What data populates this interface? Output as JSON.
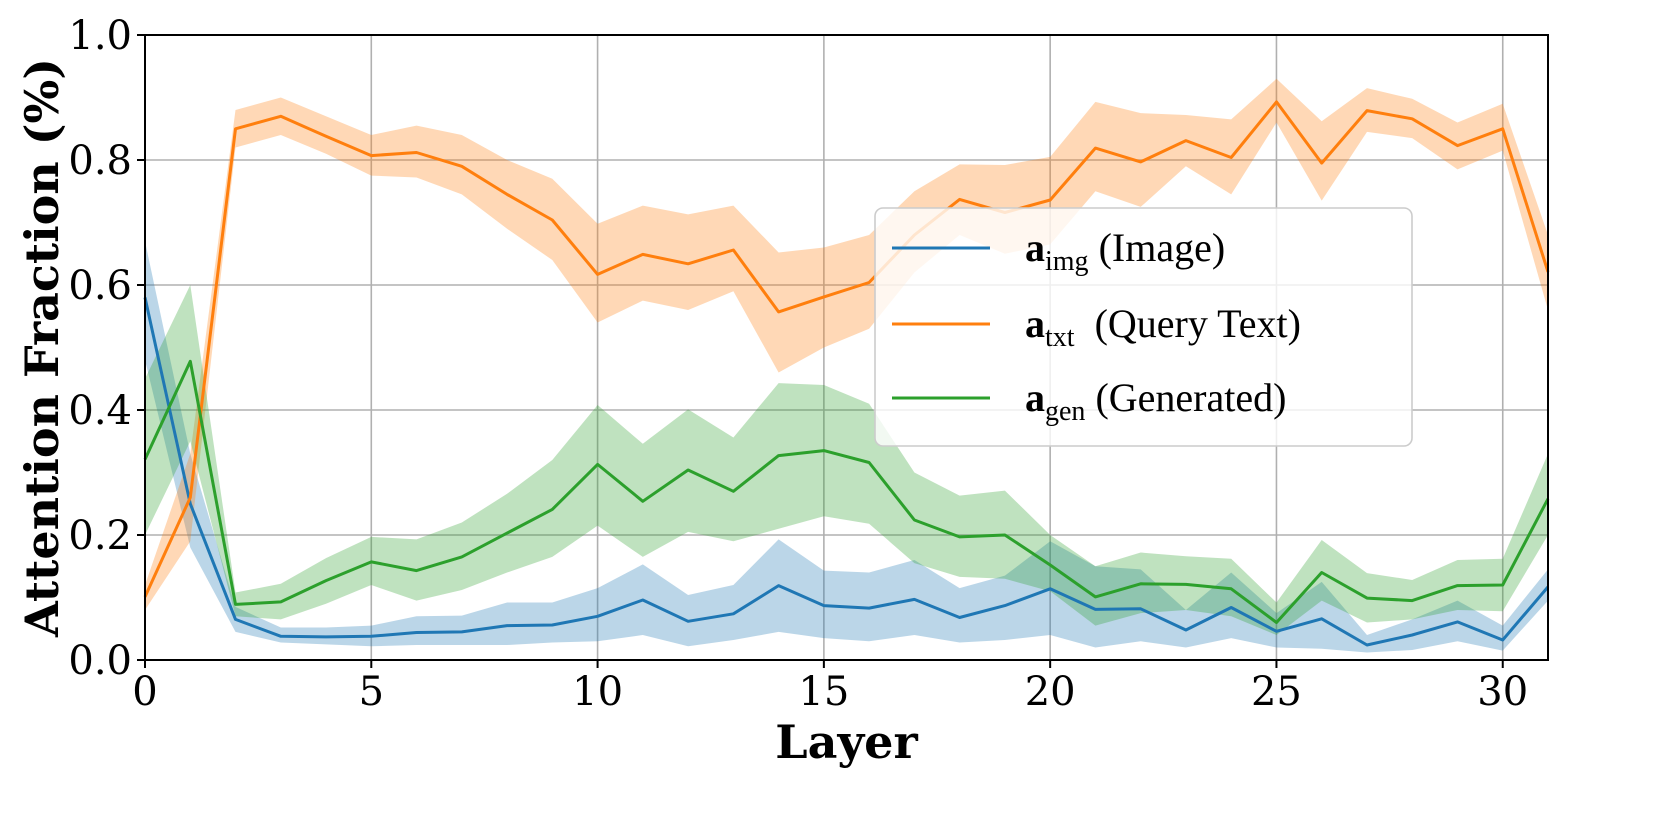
{
  "chart_data": {
    "type": "line",
    "title": "",
    "xlabel": "Layer",
    "ylabel": "Attention Fraction (%)",
    "xlim": [
      0,
      31
    ],
    "ylim": [
      0,
      1.0
    ],
    "grid": true,
    "legend_position": "center-right",
    "x_ticks": [
      0,
      5,
      10,
      15,
      20,
      25,
      30
    ],
    "x_tick_labels": [
      "0",
      "5",
      "10",
      "15",
      "20",
      "25",
      "30"
    ],
    "y_ticks": [
      0.0,
      0.2,
      0.4,
      0.6,
      0.8,
      1.0
    ],
    "y_tick_labels": [
      "0.0",
      "0.2",
      "0.4",
      "0.6",
      "0.8",
      "1.0"
    ],
    "x": [
      0,
      1,
      2,
      3,
      4,
      5,
      6,
      7,
      8,
      9,
      10,
      11,
      12,
      13,
      14,
      15,
      16,
      17,
      18,
      19,
      20,
      21,
      22,
      23,
      24,
      25,
      26,
      27,
      28,
      29,
      30,
      31
    ],
    "series": [
      {
        "name": "a_img (Image)",
        "legend_bold": "a",
        "legend_sub": "img",
        "legend_rest": " (Image)",
        "color": "#1f77b4",
        "values": [
          0.58,
          0.25,
          0.065,
          0.038,
          0.037,
          0.038,
          0.044,
          0.045,
          0.055,
          0.056,
          0.07,
          0.096,
          0.062,
          0.074,
          0.119,
          0.087,
          0.083,
          0.097,
          0.068,
          0.087,
          0.114,
          0.081,
          0.082,
          0.048,
          0.084,
          0.046,
          0.066,
          0.024,
          0.04,
          0.061,
          0.032,
          0.117
        ],
        "lower": [
          0.48,
          0.18,
          0.045,
          0.028,
          0.025,
          0.022,
          0.024,
          0.024,
          0.024,
          0.028,
          0.03,
          0.04,
          0.022,
          0.032,
          0.045,
          0.035,
          0.03,
          0.04,
          0.028,
          0.032,
          0.04,
          0.02,
          0.03,
          0.02,
          0.035,
          0.02,
          0.018,
          0.012,
          0.016,
          0.03,
          0.015,
          0.095
        ],
        "upper": [
          0.67,
          0.33,
          0.085,
          0.052,
          0.052,
          0.055,
          0.07,
          0.071,
          0.092,
          0.092,
          0.115,
          0.153,
          0.104,
          0.12,
          0.193,
          0.143,
          0.14,
          0.16,
          0.115,
          0.135,
          0.19,
          0.15,
          0.145,
          0.08,
          0.14,
          0.075,
          0.125,
          0.04,
          0.065,
          0.095,
          0.055,
          0.145
        ]
      },
      {
        "name": "a_txt (Query Text)",
        "legend_bold": "a",
        "legend_sub": "txt",
        "legend_rest": "  (Query Text)",
        "color": "#ff7f0e",
        "values": [
          0.101,
          0.26,
          0.85,
          0.87,
          0.838,
          0.807,
          0.812,
          0.79,
          0.745,
          0.704,
          0.617,
          0.649,
          0.634,
          0.656,
          0.557,
          0.581,
          0.604,
          0.68,
          0.737,
          0.716,
          0.736,
          0.819,
          0.797,
          0.831,
          0.804,
          0.893,
          0.795,
          0.879,
          0.866,
          0.823,
          0.85,
          0.621
        ],
        "lower": [
          0.08,
          0.19,
          0.82,
          0.84,
          0.81,
          0.775,
          0.772,
          0.745,
          0.69,
          0.64,
          0.54,
          0.575,
          0.56,
          0.59,
          0.46,
          0.5,
          0.53,
          0.62,
          0.68,
          0.65,
          0.665,
          0.75,
          0.725,
          0.79,
          0.745,
          0.86,
          0.735,
          0.845,
          0.835,
          0.785,
          0.815,
          0.56
        ],
        "upper": [
          0.12,
          0.33,
          0.88,
          0.9,
          0.87,
          0.84,
          0.855,
          0.84,
          0.8,
          0.77,
          0.698,
          0.727,
          0.713,
          0.727,
          0.652,
          0.66,
          0.68,
          0.75,
          0.793,
          0.792,
          0.805,
          0.893,
          0.875,
          0.872,
          0.865,
          0.93,
          0.862,
          0.915,
          0.898,
          0.86,
          0.89,
          0.68
        ]
      },
      {
        "name": "a_gen (Generated)",
        "legend_bold": "a",
        "legend_sub": "gen",
        "legend_rest": " (Generated)",
        "color": "#2ca02c",
        "values": [
          0.321,
          0.478,
          0.089,
          0.093,
          0.127,
          0.157,
          0.143,
          0.165,
          0.203,
          0.241,
          0.313,
          0.254,
          0.304,
          0.27,
          0.327,
          0.335,
          0.316,
          0.224,
          0.197,
          0.2,
          0.152,
          0.101,
          0.122,
          0.121,
          0.114,
          0.06,
          0.14,
          0.099,
          0.095,
          0.119,
          0.12,
          0.258
        ],
        "lower": [
          0.2,
          0.35,
          0.07,
          0.065,
          0.09,
          0.12,
          0.095,
          0.112,
          0.14,
          0.165,
          0.215,
          0.165,
          0.205,
          0.19,
          0.21,
          0.23,
          0.218,
          0.155,
          0.133,
          0.13,
          0.11,
          0.055,
          0.075,
          0.08,
          0.07,
          0.04,
          0.095,
          0.06,
          0.065,
          0.08,
          0.078,
          0.2
        ],
        "upper": [
          0.45,
          0.6,
          0.108,
          0.122,
          0.163,
          0.197,
          0.193,
          0.22,
          0.266,
          0.32,
          0.408,
          0.346,
          0.401,
          0.356,
          0.443,
          0.44,
          0.41,
          0.3,
          0.263,
          0.271,
          0.2,
          0.15,
          0.172,
          0.166,
          0.162,
          0.092,
          0.192,
          0.139,
          0.128,
          0.16,
          0.162,
          0.33
        ]
      }
    ]
  }
}
